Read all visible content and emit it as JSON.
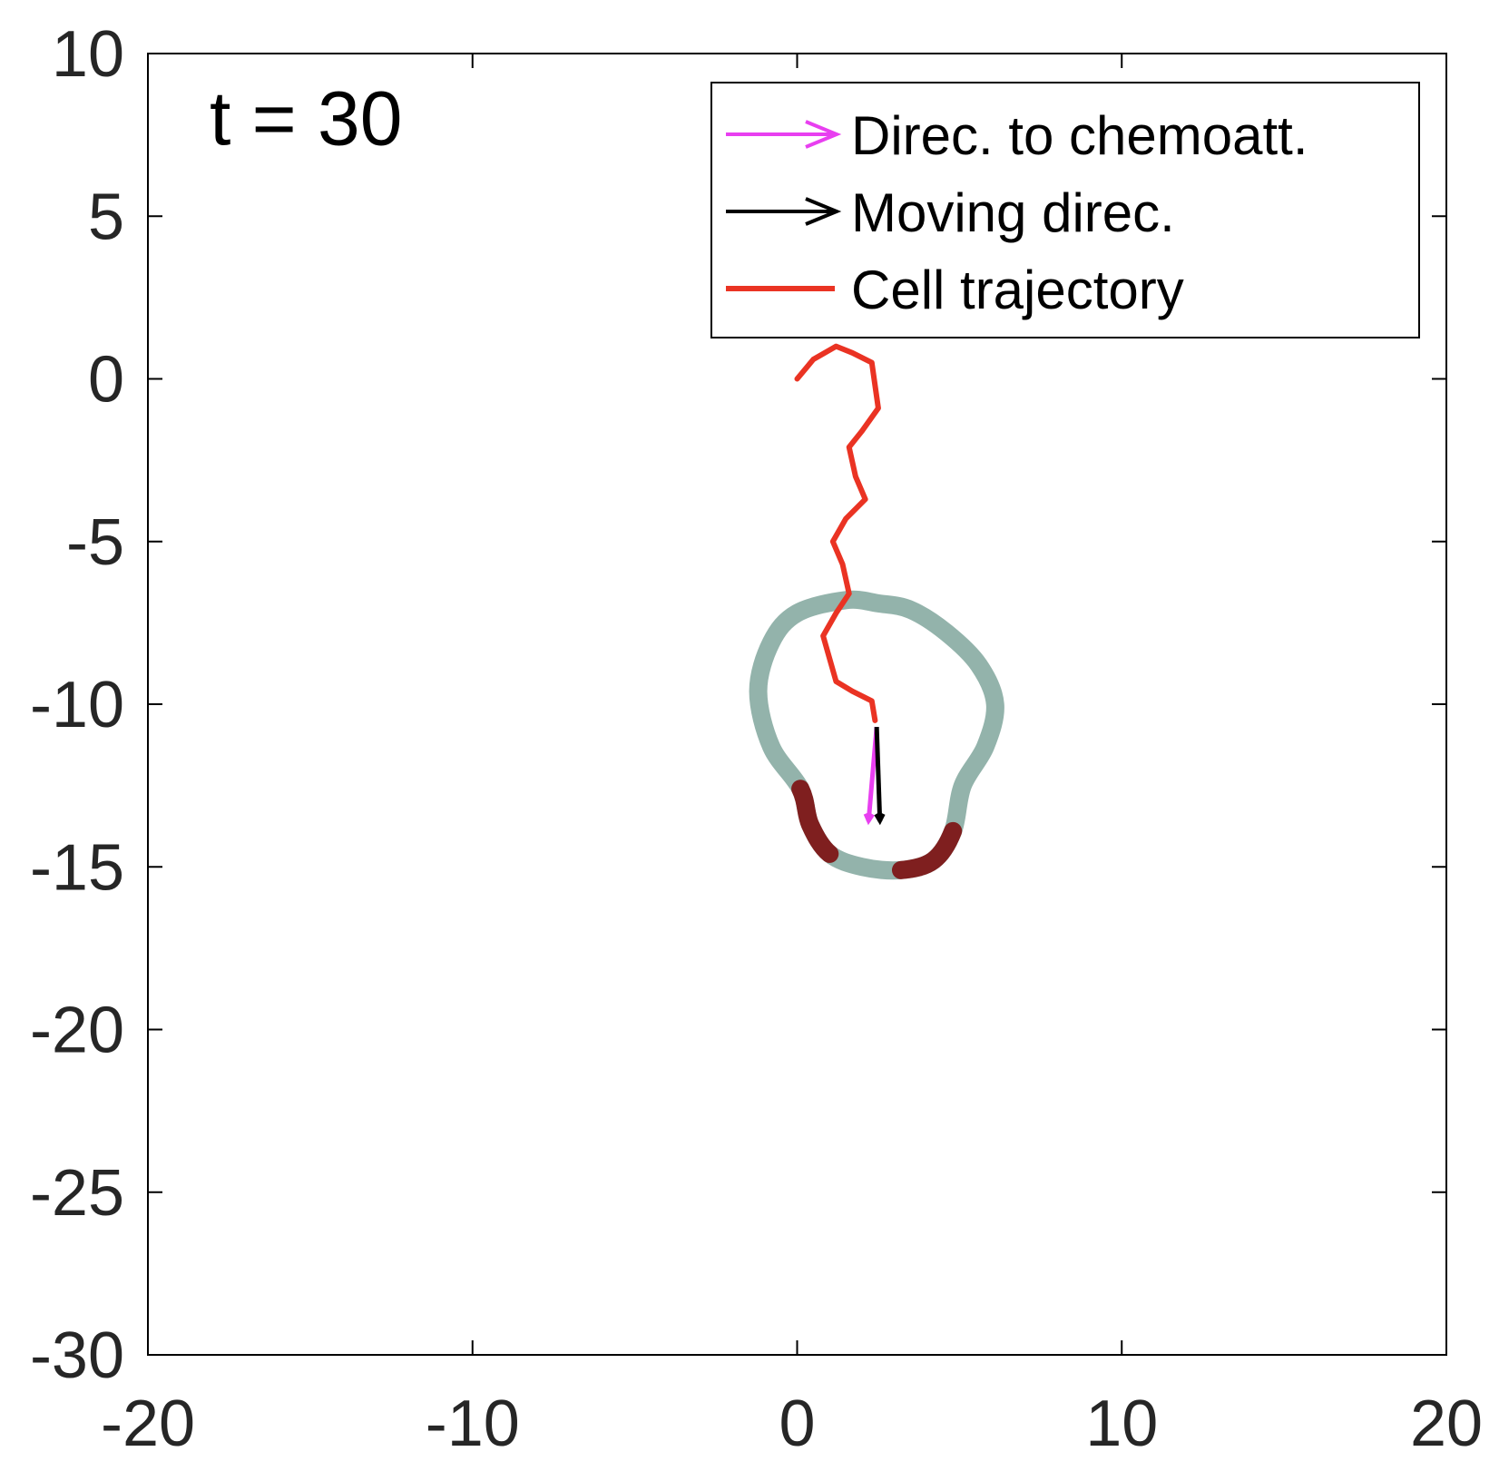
{
  "chart_data": {
    "type": "line",
    "title": "",
    "xlabel": "",
    "ylabel": "",
    "xlim": [
      -20,
      20
    ],
    "ylim": [
      -30,
      10
    ],
    "xticks": [
      -20,
      -10,
      0,
      10,
      20
    ],
    "yticks": [
      10,
      5,
      0,
      -5,
      -10,
      -15,
      -20,
      -25,
      -30
    ],
    "xtick_labels": [
      "-20",
      "-10",
      "0",
      "10",
      "20"
    ],
    "ytick_labels": [
      "10",
      "5",
      "0",
      "-5",
      "-10",
      "-15",
      "-20",
      "-25",
      "-30"
    ],
    "grid": false,
    "annotation": {
      "text": "t = 30",
      "x": -18.1,
      "y": 7.2
    },
    "legend": {
      "placement": "top-right",
      "entries": [
        {
          "label": "Direc. to chemoatt.",
          "color": "#e83ff0",
          "marker": "arrow"
        },
        {
          "label": "Moving direc.",
          "color": "#000000",
          "marker": "arrow"
        },
        {
          "label": "Cell trajectory",
          "color": "#ea3323",
          "marker": "line"
        }
      ]
    },
    "series": [
      {
        "kind": "trajectory",
        "color": "#ea3323",
        "points": [
          [
            0.0,
            0.0
          ],
          [
            0.5,
            0.6
          ],
          [
            1.2,
            1.0
          ],
          [
            1.7,
            0.8
          ],
          [
            2.3,
            0.5
          ],
          [
            2.5,
            -0.9
          ],
          [
            2.0,
            -1.6
          ],
          [
            1.6,
            -2.1
          ],
          [
            1.8,
            -3.0
          ],
          [
            2.1,
            -3.7
          ],
          [
            1.5,
            -4.3
          ],
          [
            1.1,
            -5.0
          ],
          [
            1.4,
            -5.7
          ],
          [
            1.6,
            -6.6
          ],
          [
            1.2,
            -7.2
          ],
          [
            0.8,
            -7.9
          ],
          [
            1.0,
            -8.6
          ],
          [
            1.2,
            -9.3
          ],
          [
            1.7,
            -9.6
          ],
          [
            2.3,
            -9.9
          ],
          [
            2.4,
            -10.5
          ]
        ]
      },
      {
        "kind": "arrow",
        "name": "Direc. to chemoatt.",
        "color": "#e83ff0",
        "from": [
          2.45,
          -10.7
        ],
        "to": [
          2.2,
          -13.6
        ]
      },
      {
        "kind": "arrow",
        "name": "Moving direc.",
        "color": "#000000",
        "from": [
          2.45,
          -10.7
        ],
        "to": [
          2.55,
          -13.6
        ]
      },
      {
        "kind": "cell-boundary",
        "color": "#93b3ab",
        "active_color": "#7d1212",
        "points": [
          [
            2.5,
            -6.9
          ],
          [
            3.5,
            -7.1
          ],
          [
            4.6,
            -7.8
          ],
          [
            5.6,
            -8.8
          ],
          [
            6.1,
            -10.0
          ],
          [
            5.8,
            -11.3
          ],
          [
            5.1,
            -12.5
          ],
          [
            4.8,
            -13.9
          ],
          [
            4.2,
            -14.8
          ],
          [
            3.2,
            -15.1
          ],
          [
            2.0,
            -15.0
          ],
          [
            1.0,
            -14.6
          ],
          [
            0.4,
            -13.7
          ],
          [
            0.1,
            -12.6
          ],
          [
            -0.8,
            -11.3
          ],
          [
            -1.2,
            -9.6
          ],
          [
            -0.8,
            -8.1
          ],
          [
            0.0,
            -7.2
          ],
          [
            1.5,
            -6.8
          ]
        ],
        "active_segments": [
          [
            7,
            9
          ],
          [
            11,
            13
          ]
        ]
      }
    ]
  }
}
